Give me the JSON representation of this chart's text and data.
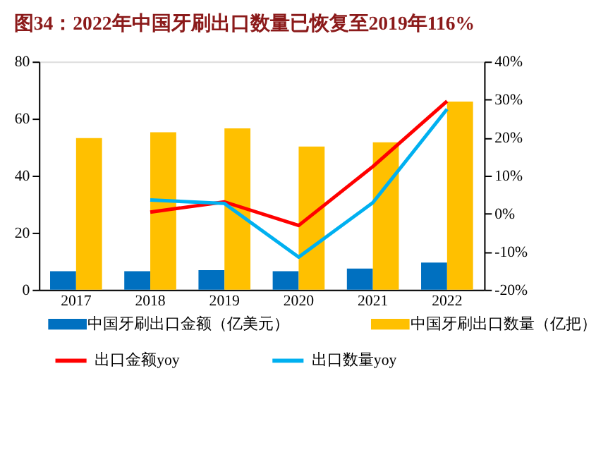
{
  "chart_data": {
    "type": "bar",
    "title": "图34：2022年中国牙刷出口数量已恢复至2019年116%",
    "categories": [
      "2017",
      "2018",
      "2019",
      "2020",
      "2021",
      "2022"
    ],
    "series": [
      {
        "name": "中国牙刷出口金额（亿美元）",
        "color": "#0070c0",
        "values": [
          6.5,
          6.5,
          6.9,
          6.5,
          7.4,
          9.5
        ]
      },
      {
        "name": "中国牙刷出口数量（亿把）",
        "color": "#ffc000",
        "values": [
          53.2,
          55.2,
          56.6,
          50.2,
          51.7,
          66.0
        ]
      },
      {
        "name": "出口金额yoy",
        "type": "line",
        "axis": "y2",
        "color": "#ff0000",
        "values": [
          null,
          0.4,
          3.1,
          -3.1,
          12.4,
          29.6
        ]
      },
      {
        "name": "出口数量yoy",
        "type": "line",
        "axis": "y2",
        "color": "#00b0f0",
        "values": [
          null,
          3.6,
          2.7,
          -11.4,
          2.9,
          27.5
        ]
      }
    ],
    "ylim": [
      0,
      80
    ],
    "yticks": [
      0,
      20,
      40,
      60,
      80
    ],
    "y2lim": [
      -20,
      40
    ],
    "y2ticks": [
      {
        "value": -20,
        "label": "-20%"
      },
      {
        "value": -10,
        "label": "-10%"
      },
      {
        "value": 0,
        "label": "0%"
      },
      {
        "value": 10,
        "label": "10%"
      },
      {
        "value": 20,
        "label": "20%"
      },
      {
        "value": 30,
        "label": "30%"
      },
      {
        "value": 40,
        "label": "40%"
      }
    ],
    "grid": false,
    "legend": "bottom",
    "marker": "none",
    "line_style": "solid"
  }
}
